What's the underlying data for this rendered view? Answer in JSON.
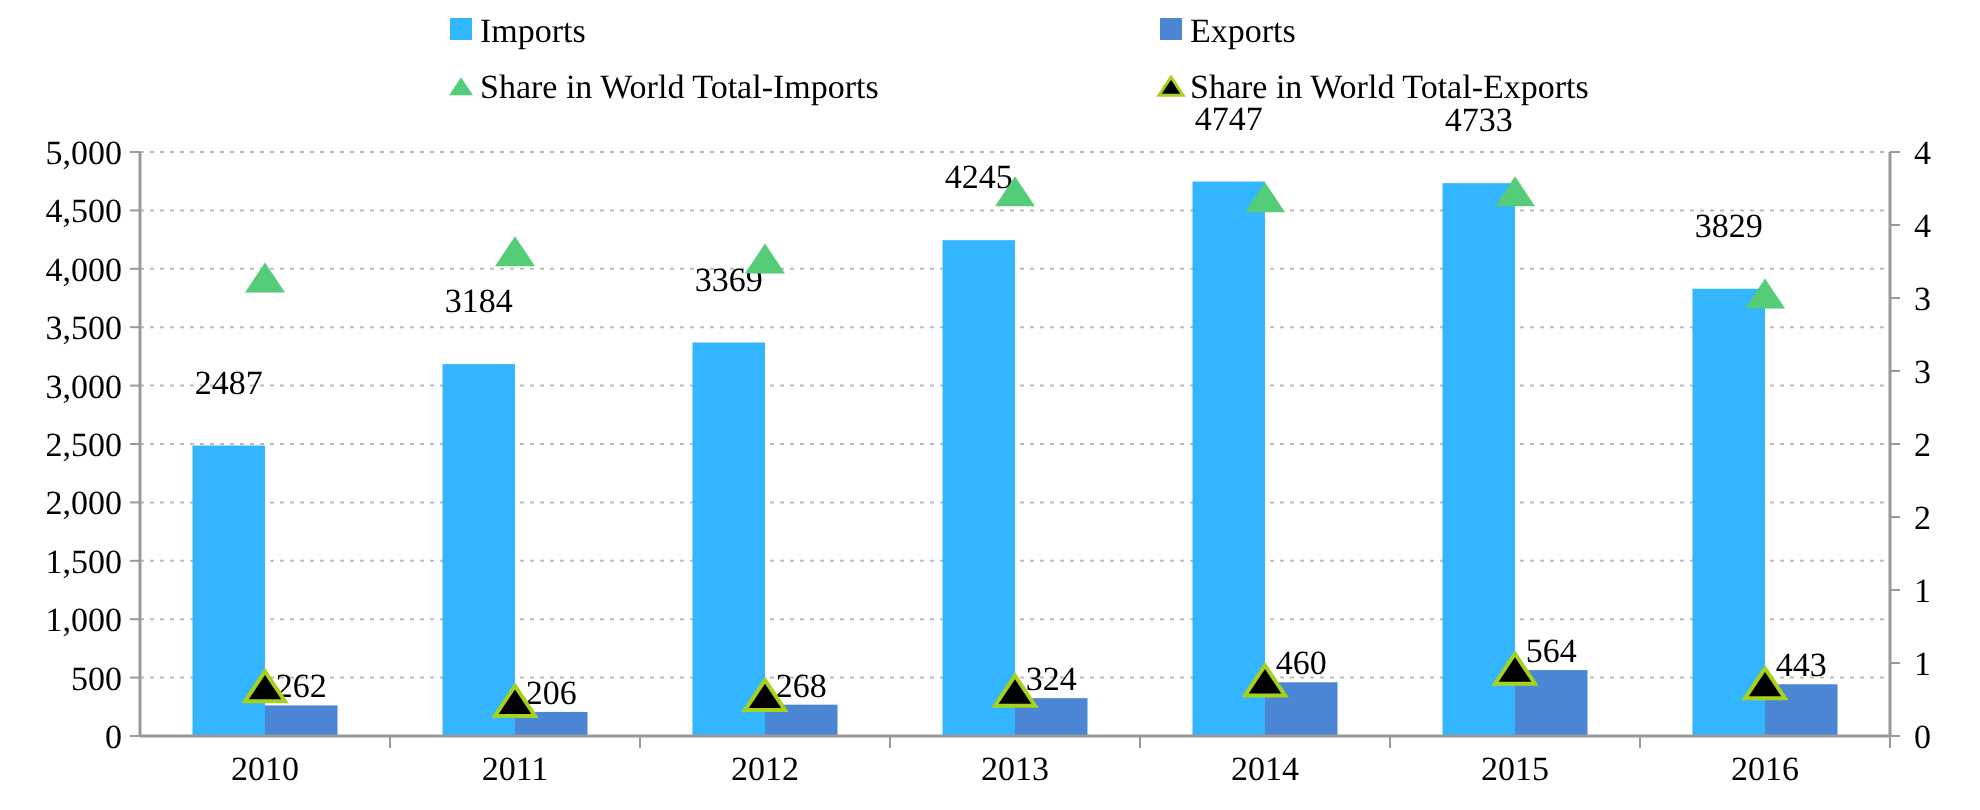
{
  "chart_data": {
    "type": "bar",
    "categories": [
      "2010",
      "2011",
      "2012",
      "2013",
      "2014",
      "2015",
      "2016"
    ],
    "series": [
      {
        "name": "Imports",
        "color": "#33b5ff",
        "values": [
          2487,
          3184,
          3369,
          4245,
          4747,
          4733,
          3829
        ],
        "value_labels": [
          "2487",
          "3184",
          "3369",
          "4245",
          "4747",
          "4733",
          "3829"
        ]
      },
      {
        "name": "Exports",
        "color": "#4a86d4",
        "values": [
          262,
          206,
          268,
          324,
          460,
          564,
          443
        ],
        "value_labels": [
          "262",
          "206",
          "268",
          "324",
          "460",
          "564",
          "443"
        ]
      },
      {
        "name": "Share in World Total-Imports",
        "type": "scatter",
        "axis": "y2",
        "marker": "triangle",
        "color": "#55cc77",
        "values": [
          3.12,
          3.3,
          3.25,
          3.71,
          3.67,
          3.71,
          3.01
        ]
      },
      {
        "name": "Share in World Total-Exports",
        "type": "scatter",
        "axis": "y2",
        "marker": "triangle",
        "color": "#000000",
        "values": [
          0.32,
          0.22,
          0.26,
          0.29,
          0.36,
          0.44,
          0.34
        ]
      }
    ],
    "ylim": [
      0,
      5000
    ],
    "yticks": [
      {
        "value": 0,
        "label": "0"
      },
      {
        "value": 500,
        "label": "500"
      },
      {
        "value": 1000,
        "label": "1,000"
      },
      {
        "value": 1500,
        "label": "1,500"
      },
      {
        "value": 2000,
        "label": "2,000"
      },
      {
        "value": 2500,
        "label": "2,500"
      },
      {
        "value": 3000,
        "label": "3,000"
      },
      {
        "value": 3500,
        "label": "3,500"
      },
      {
        "value": 4000,
        "label": "4,000"
      },
      {
        "value": 4500,
        "label": "4,500"
      },
      {
        "value": 5000,
        "label": "5,000"
      }
    ],
    "y2lim": [
      0,
      4
    ],
    "y2ticks": [
      0,
      {
        "value": 0.5,
        "label": "1"
      },
      1,
      {
        "value": 1.5,
        "label": "2"
      },
      2,
      {
        "value": 2.5,
        "label": "3"
      },
      3,
      {
        "value": 3.5,
        "label": "4"
      },
      4
    ],
    "grid": "y",
    "legend": "top"
  }
}
